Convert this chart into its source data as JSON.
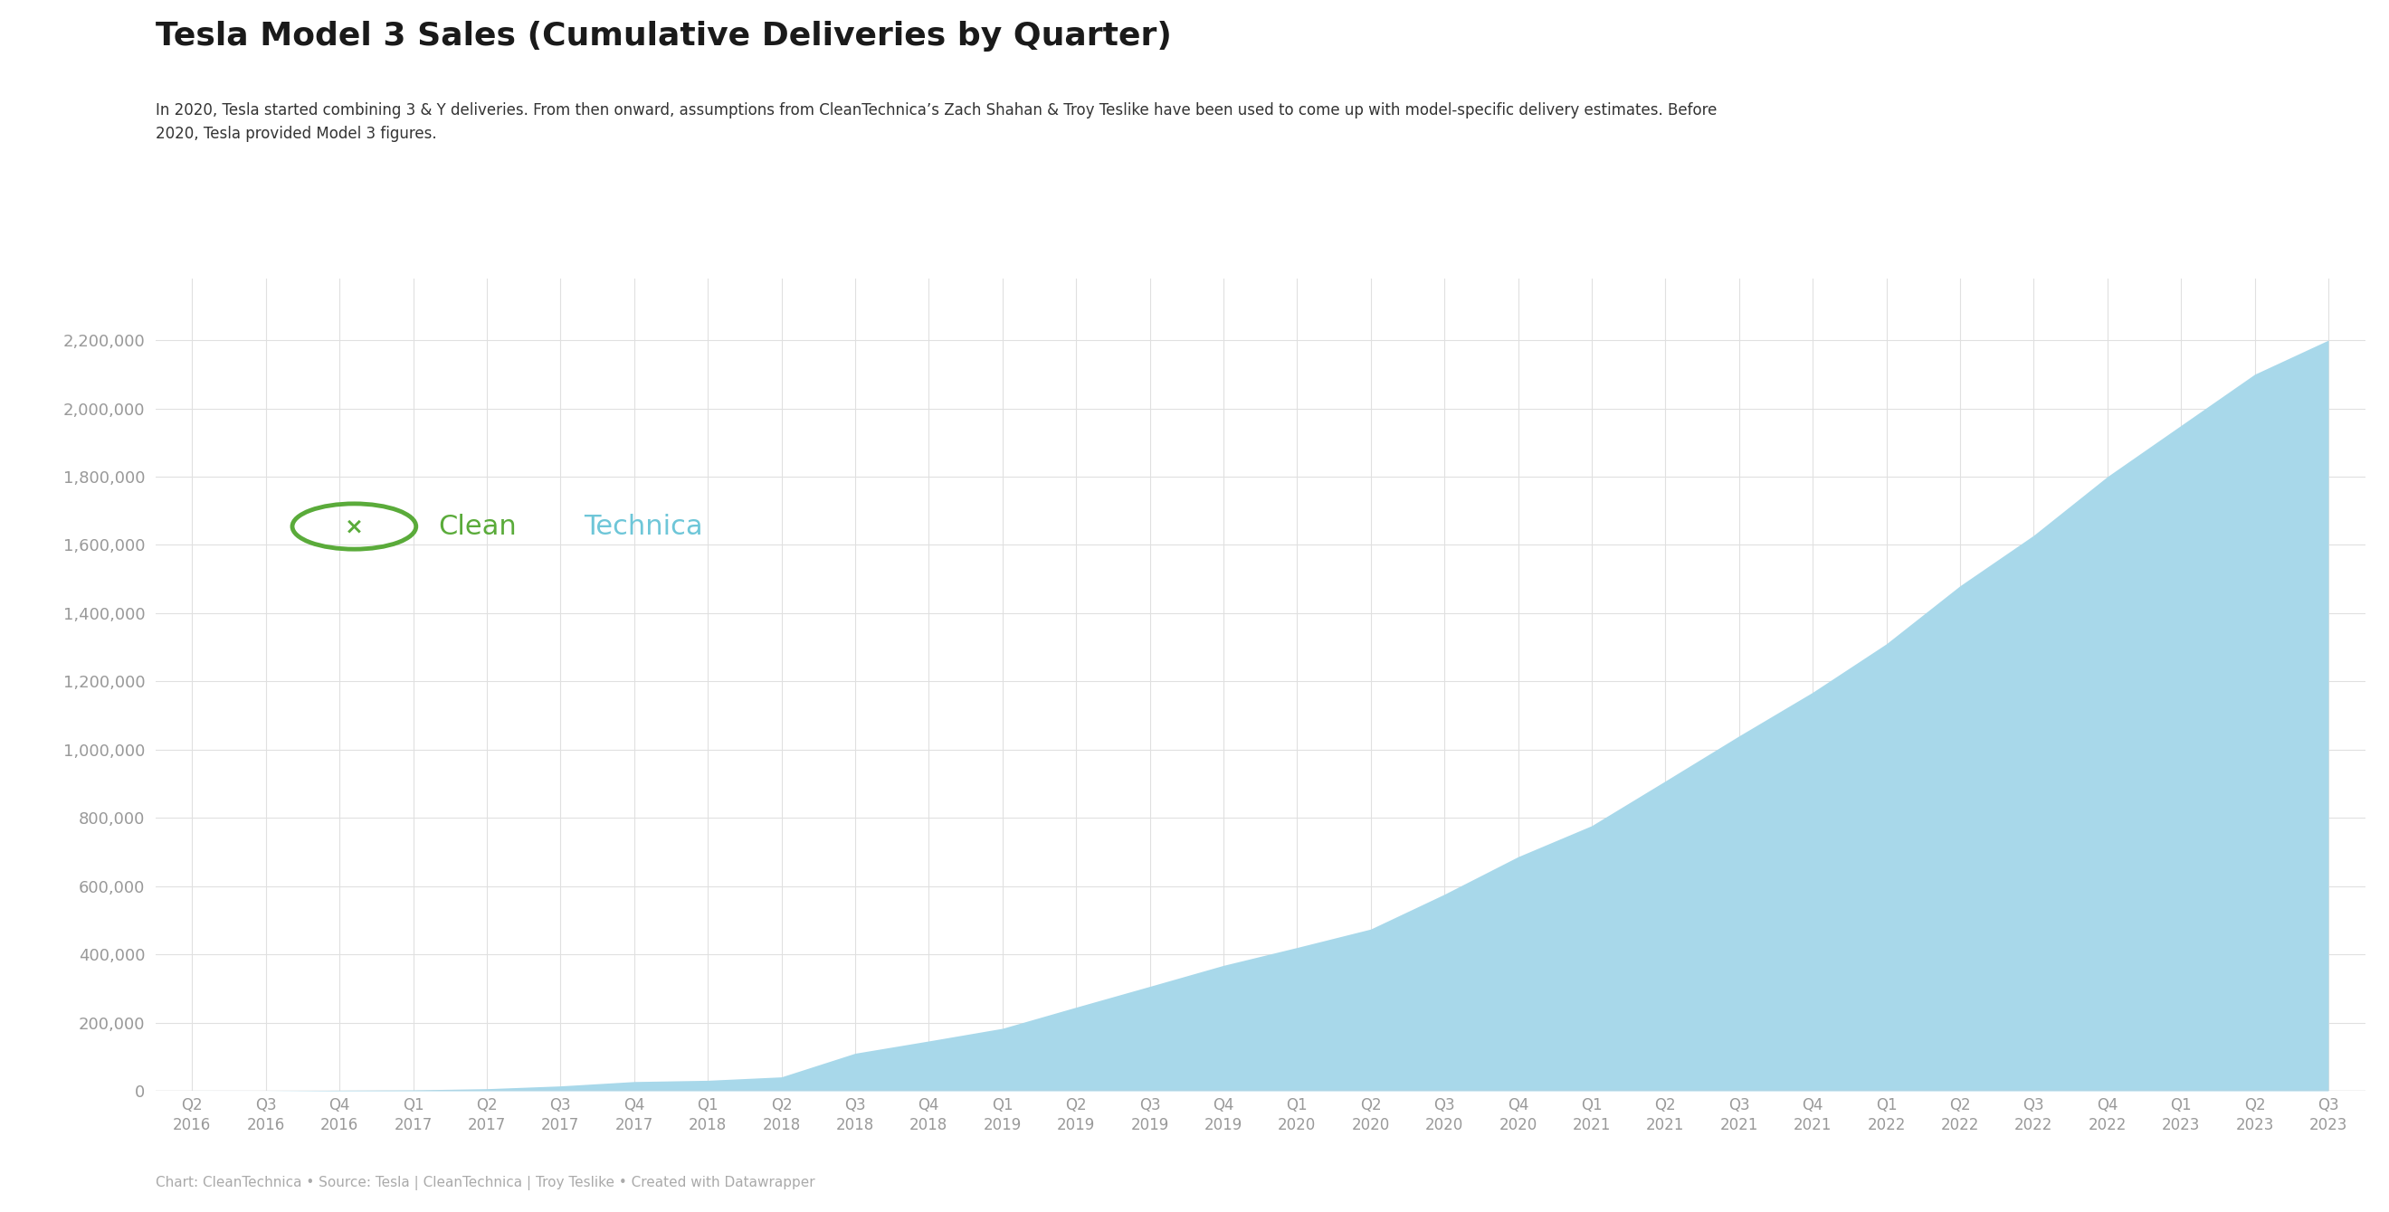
{
  "title": "Tesla Model 3 Sales (Cumulative Deliveries by Quarter)",
  "subtitle": "In 2020, Tesla started combining 3 & Y deliveries. From then onward, assumptions from CleanTechnica’s Zach Shahan & Troy Teslike have been used to come up with model-specific delivery estimates. Before\n2020, Tesla provided Model 3 figures.",
  "footer": "Chart: CleanTechnica • Source: Tesla | CleanTechnica | Troy Teslike • Created with Datawrapper",
  "background_color": "#ffffff",
  "fill_color": "#a8d8ea",
  "grid_color": "#e0e0e0",
  "title_color": "#1a1a1a",
  "subtitle_color": "#333333",
  "tick_label_color": "#999999",
  "footer_color": "#aaaaaa",
  "watermark_green": "#5aab3a",
  "watermark_blue": "#6ec6d8",
  "quarters": [
    "Q2\n2016",
    "Q3\n2016",
    "Q4\n2016",
    "Q1\n2017",
    "Q2\n2017",
    "Q3\n2017",
    "Q4\n2017",
    "Q1\n2018",
    "Q2\n2018",
    "Q3\n2018",
    "Q4\n2018",
    "Q1\n2019",
    "Q2\n2019",
    "Q3\n2019",
    "Q4\n2019",
    "Q1\n2020",
    "Q2\n2020",
    "Q3\n2020",
    "Q4\n2020",
    "Q1\n2021",
    "Q2\n2021",
    "Q3\n2021",
    "Q4\n2021",
    "Q1\n2022",
    "Q2\n2022",
    "Q3\n2022",
    "Q4\n2022",
    "Q1\n2023",
    "Q2\n2023",
    "Q3\n2023"
  ],
  "cumulative_values": [
    30,
    145,
    1542,
    2685,
    6109,
    14250,
    27060,
    30750,
    40740,
    110000,
    146000,
    183000,
    245000,
    306000,
    367500,
    420000,
    474000,
    576000,
    686000,
    777000,
    908000,
    1040000,
    1168000,
    1310000,
    1480000,
    1628000,
    1800000,
    1950000,
    2100000,
    2200000
  ],
  "yticks": [
    0,
    200000,
    400000,
    600000,
    800000,
    1000000,
    1200000,
    1400000,
    1600000,
    1800000,
    2000000,
    2200000
  ],
  "ylim": [
    0,
    2380000
  ],
  "show_all_xticks": true,
  "title_fontsize": 26,
  "subtitle_fontsize": 12,
  "footer_fontsize": 11,
  "ytick_fontsize": 13,
  "xtick_fontsize": 12
}
